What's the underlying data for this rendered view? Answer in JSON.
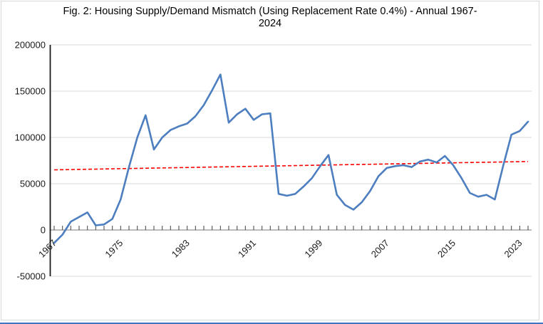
{
  "figure": {
    "title_line1": "Fig. 2: Housing Supply/Demand Mismatch (Using Replacement Rate 0.4%) - Annual 1967-",
    "title_line2": "2024"
  },
  "chart_data": {
    "type": "line",
    "title": "Fig. 2: Housing Supply/Demand Mismatch (Using Replacement Rate 0.4%) - Annual 1967-2024",
    "xlabel": "",
    "ylabel": "",
    "year_start": 1967,
    "year_end": 2024,
    "series_name": "Housing supply/demand mismatch",
    "values": [
      -14000,
      -5000,
      9000,
      14000,
      19000,
      5000,
      6000,
      12000,
      33000,
      68000,
      100000,
      124000,
      87000,
      100000,
      108000,
      112000,
      115000,
      123000,
      135000,
      151000,
      168000,
      116000,
      125000,
      131000,
      119000,
      125000,
      126000,
      39000,
      37000,
      39000,
      47000,
      56000,
      69000,
      81000,
      38000,
      27000,
      22000,
      30000,
      42000,
      58000,
      67000,
      69000,
      70000,
      68000,
      74000,
      76000,
      73000,
      80000,
      70000,
      56000,
      40000,
      36000,
      38000,
      33000,
      69000,
      103000,
      107000,
      117000
    ],
    "trend": {
      "name": "Linear trend",
      "style": "dashed",
      "start_value": 65000,
      "end_value": 74000
    },
    "ylim": [
      -50000,
      200000
    ],
    "y_ticks": [
      {
        "label": "200000",
        "value": 200000
      },
      {
        "label": "150000",
        "value": 150000
      },
      {
        "label": "100000",
        "value": 100000
      },
      {
        "label": "50000",
        "value": 50000
      },
      {
        "label": "0",
        "value": 0
      },
      {
        "label": "-50000",
        "value": -50000
      }
    ],
    "x_tick_labels": [
      "1967",
      "1975",
      "1983",
      "1991",
      "1999",
      "2007",
      "2015",
      "2023"
    ],
    "grid": true,
    "legend_position": "none",
    "colors": {
      "series": "#4d7ebf",
      "trend": "#ff0000",
      "grid": "#d9d9d9",
      "axis": "#a6a6a6",
      "tick": "#404040",
      "y_axis": "#1a1a1a",
      "text": "#000000",
      "bottom_edge": "#4472c4"
    }
  }
}
